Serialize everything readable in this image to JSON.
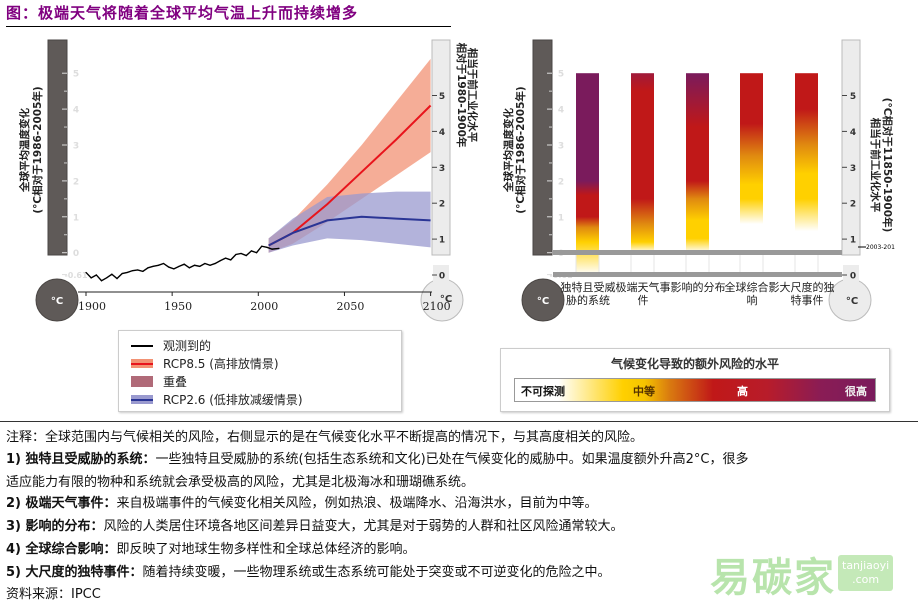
{
  "title": "图：极端天气将随着全球平均气温上升而持续增多",
  "chart_data": [
    {
      "type": "line",
      "xlim": [
        1900,
        2100
      ],
      "xticks": [
        "1900",
        "1950",
        "2000",
        "2050",
        "2100"
      ],
      "ylim": [
        -0.61,
        5.5
      ],
      "left_axis": {
        "label": "全球平均温度变化",
        "sublabel": "(°C相对于1986-2005年)",
        "ticks": [
          "5",
          "4",
          "3",
          "2",
          "1",
          "0",
          "-0.61"
        ],
        "unit": "°C"
      },
      "right_axis": {
        "label": "相对于1980-1900年",
        "sublabel": "相当于前工业化水平",
        "ticks": [
          "5",
          "4",
          "3",
          "2",
          "1",
          "0"
        ],
        "unit": "°C"
      },
      "series": [
        {
          "name": "观测到的",
          "color": "#000000",
          "x": [
            1900,
            1903,
            1906,
            1909,
            1912,
            1915,
            1918,
            1921,
            1924,
            1927,
            1930,
            1933,
            1936,
            1939,
            1942,
            1945,
            1948,
            1951,
            1954,
            1957,
            1960,
            1963,
            1966,
            1969,
            1972,
            1975,
            1978,
            1981,
            1984,
            1987,
            1990,
            1993,
            1996,
            1999,
            2002,
            2005,
            2008,
            2012
          ],
          "y": [
            -0.55,
            -0.7,
            -0.62,
            -0.78,
            -0.7,
            -0.6,
            -0.72,
            -0.58,
            -0.55,
            -0.5,
            -0.48,
            -0.52,
            -0.42,
            -0.38,
            -0.35,
            -0.3,
            -0.4,
            -0.45,
            -0.38,
            -0.32,
            -0.42,
            -0.35,
            -0.38,
            -0.3,
            -0.35,
            -0.3,
            -0.22,
            -0.15,
            -0.2,
            -0.05,
            -0.02,
            -0.08,
            0.05,
            0.0,
            0.18,
            0.15,
            0.1,
            0.12
          ]
        },
        {
          "name": "RCP8.5 (高排放情景)",
          "color": "#e8141c",
          "band_color": "#f29274",
          "x": [
            2006,
            2020,
            2040,
            2060,
            2080,
            2100
          ],
          "y": [
            0.2,
            0.55,
            1.35,
            2.25,
            3.15,
            4.1
          ],
          "low": [
            0.0,
            0.25,
            0.85,
            1.5,
            2.15,
            2.8
          ],
          "high": [
            0.4,
            0.9,
            1.9,
            3.0,
            4.2,
            5.4
          ]
        },
        {
          "name": "RCP2.6 (低排放减缓情景)",
          "color": "#2a3595",
          "band_color": "#9a9acf",
          "x": [
            2006,
            2020,
            2040,
            2060,
            2080,
            2100
          ],
          "y": [
            0.2,
            0.55,
            0.9,
            1.0,
            0.95,
            0.9
          ],
          "low": [
            0.0,
            0.2,
            0.4,
            0.35,
            0.25,
            0.15
          ],
          "high": [
            0.4,
            0.95,
            1.55,
            1.65,
            1.7,
            1.7
          ]
        },
        {
          "name": "重叠",
          "color": "#b06a78"
        }
      ]
    },
    {
      "type": "bar",
      "categories": [
        "独特且受威胁的系统",
        "极端天气事件",
        "影响的分布",
        "全球综合影响",
        "大尺度的独特事件"
      ],
      "ylim": [
        -0.61,
        5
      ],
      "left_axis": {
        "label": "全球平均温度变化",
        "sublabel": "(°C相对于1986-2005年)",
        "ticks": [
          "5",
          "4",
          "3",
          "2",
          "1",
          "0",
          "-0.61"
        ],
        "unit": "°C"
      },
      "right_axis": {
        "label": "相当于前工业化水平",
        "sublabel": "(°C相对于11850-1900年)",
        "ticks": [
          "5",
          "4",
          "3",
          "2",
          "1",
          "0"
        ],
        "unit": "°C",
        "marker": "2003-201"
      },
      "risk_levels": {
        "不可探测": "#ffffff",
        "中等": "#ffd000",
        "中高": "#e08a10",
        "高": "#c01818",
        "高-很高": "#a01a3a",
        "很高": "#7a1b5c"
      },
      "bars": [
        {
          "stops": [
            [
              -0.61,
              "不可探测"
            ],
            [
              0.3,
              "中等"
            ],
            [
              0.7,
              "中高"
            ],
            [
              1.0,
              "高"
            ],
            [
              1.6,
              "高"
            ],
            [
              2.0,
              "很高"
            ],
            [
              5,
              "很高"
            ]
          ]
        },
        {
          "stops": [
            [
              0.0,
              "不可探测"
            ],
            [
              0.3,
              "中等"
            ],
            [
              0.8,
              "中高"
            ],
            [
              1.5,
              "高"
            ],
            [
              4.5,
              "高"
            ],
            [
              5,
              "高-很高"
            ]
          ]
        },
        {
          "stops": [
            [
              0.0,
              "不可探测"
            ],
            [
              0.4,
              "中等"
            ],
            [
              0.9,
              "中等"
            ],
            [
              1.5,
              "中高"
            ],
            [
              2.0,
              "高"
            ],
            [
              3.5,
              "高"
            ],
            [
              5,
              "很高"
            ]
          ]
        },
        {
          "stops": [
            [
              0.8,
              "不可探测"
            ],
            [
              1.5,
              "中等"
            ],
            [
              1.9,
              "中等"
            ],
            [
              2.7,
              "中高"
            ],
            [
              3.6,
              "高"
            ],
            [
              5,
              "高"
            ]
          ]
        },
        {
          "stops": [
            [
              0.6,
              "不可探测"
            ],
            [
              1.5,
              "中等"
            ],
            [
              2.2,
              "中等"
            ],
            [
              3.0,
              "中高"
            ],
            [
              4.0,
              "高"
            ],
            [
              5,
              "高"
            ]
          ]
        }
      ]
    }
  ],
  "legend1": [
    "观测到的",
    "RCP8.5 (高排放情景)",
    "重叠",
    "RCP2.6 (低排放减缓情景)"
  ],
  "legend2": {
    "title": "气候变化导致的额外风险的水平",
    "labels": [
      "不可探测",
      "中等",
      "高",
      "很高"
    ]
  },
  "notes": {
    "intro": "注释：全球范围内与气候相关的风险，右侧显示的是在气候变化水平不断提高的情况下，与其高度相关的风险。",
    "items": [
      {
        "head": "1) 独特且受威胁的系统：",
        "text": "一些独特且受威胁的系统(包括生态系统和文化)已处在气候变化的威胁中。如果温度额外升高2°C，很多",
        "cont": "适应能力有限的物种和系统就会承受极高的风险，尤其是北极海冰和珊瑚礁系统。"
      },
      {
        "head": "2) 极端天气事件：",
        "text": "来自极端事件的气候变化相关风险，例如热浪、极端降水、沿海洪水，目前为中等。"
      },
      {
        "head": "3) 影响的分布：",
        "text": "风险的人类居住环境各地区间差异日益变大，尤其是对于弱势的人群和社区风险通常较大。"
      },
      {
        "head": "4) 全球综合影响：",
        "text": "即反映了对地球生物多样性和全球总体经济的影响。"
      },
      {
        "head": "5) 大尺度的独特事件：",
        "text": "随着持续变暖，一些物理系统或生态系统可能处于突变或不可逆变化的危险之中。"
      }
    ],
    "source": "资料来源：IPCC"
  },
  "watermark": {
    "brand": "易碳家",
    "site": "tanjiaoyi",
    "tld": ".com"
  }
}
